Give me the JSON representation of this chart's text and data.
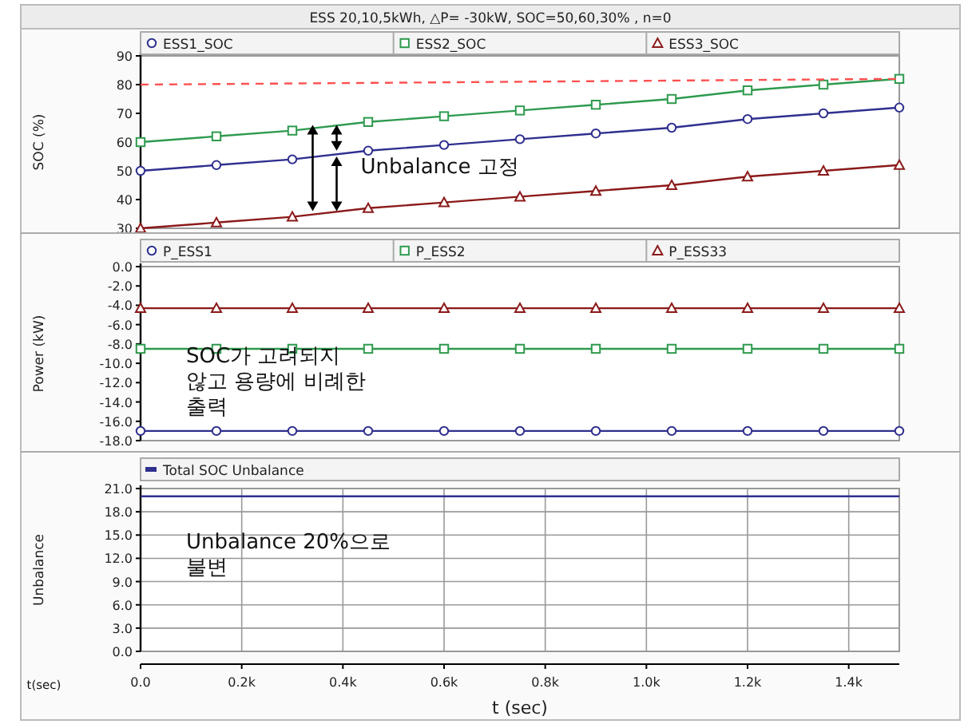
{
  "chart_data": [
    {
      "type": "line",
      "title": "ESS 20,10,5kWh, △P= -30kW, SOC=50,60,30% , n=0",
      "ylabel": "SOC (%)",
      "legend": "top",
      "grid": false,
      "tick_labels": "y",
      "xlim": [
        0,
        1500
      ],
      "ylim": [
        30,
        90
      ],
      "yticks": [
        30,
        40,
        50,
        60,
        70,
        80,
        90
      ],
      "annotations": [
        "Unbalance 고정"
      ],
      "series": [
        {
          "name": "ESS1_SOC",
          "color": "#2f2f8f",
          "marker": "circle",
          "x": [
            0,
            150,
            300,
            450,
            600,
            750,
            900,
            1050,
            1200,
            1350,
            1500
          ],
          "values": [
            50,
            52,
            54,
            57,
            59,
            61,
            63,
            65,
            68,
            70,
            72
          ]
        },
        {
          "name": "ESS2_SOC",
          "color": "#2e9a4e",
          "marker": "square",
          "x": [
            0,
            150,
            300,
            450,
            600,
            750,
            900,
            1050,
            1200,
            1350,
            1500
          ],
          "values": [
            60,
            62,
            64,
            67,
            69,
            71,
            73,
            75,
            78,
            80,
            82
          ]
        },
        {
          "name": "ESS3_SOC",
          "color": "#8b1a1a",
          "marker": "triangle",
          "x": [
            0,
            150,
            300,
            450,
            600,
            750,
            900,
            1050,
            1200,
            1350,
            1500
          ],
          "values": [
            30,
            32,
            34,
            37,
            39,
            41,
            43,
            45,
            48,
            50,
            52
          ]
        },
        {
          "color": "#ff5050",
          "marker": "none",
          "line_style": "dashed",
          "x": [
            0,
            1500
          ],
          "values": [
            80,
            82
          ]
        }
      ]
    },
    {
      "type": "line",
      "ylabel": "Power (kW)",
      "legend": "top",
      "grid": false,
      "tick_labels": "y",
      "xlim": [
        0,
        1500
      ],
      "ylim": [
        -18,
        0
      ],
      "yticks": [
        {
          "value": 0,
          "label": "0.0"
        },
        {
          "value": -2,
          "label": "-2.0"
        },
        {
          "value": -4,
          "label": "-4.0"
        },
        {
          "value": -6,
          "label": "-6.0"
        },
        {
          "value": -8,
          "label": "-8.0"
        },
        {
          "value": -10,
          "label": "-10.0"
        },
        {
          "value": -12,
          "label": "-12.0"
        },
        {
          "value": -14,
          "label": "-14.0"
        },
        {
          "value": -16,
          "label": "-16.0"
        },
        {
          "value": -18,
          "label": "-18.0"
        }
      ],
      "annotations": [
        "SOC가 고려되지\n않고 용량에 비례한\n출력"
      ],
      "series": [
        {
          "name": "P_ESS1",
          "color": "#2f2f8f",
          "marker": "circle",
          "x": [
            0,
            150,
            300,
            450,
            600,
            750,
            900,
            1050,
            1200,
            1350,
            1500
          ],
          "values": [
            -17,
            -17,
            -17,
            -17,
            -17,
            -17,
            -17,
            -17,
            -17,
            -17,
            -17
          ]
        },
        {
          "name": "P_ESS2",
          "color": "#2e9a4e",
          "marker": "square",
          "x": [
            0,
            150,
            300,
            450,
            600,
            750,
            900,
            1050,
            1200,
            1350,
            1500
          ],
          "values": [
            -8.5,
            -8.5,
            -8.5,
            -8.5,
            -8.5,
            -8.5,
            -8.5,
            -8.5,
            -8.5,
            -8.5,
            -8.5
          ]
        },
        {
          "name": "P_ESS33",
          "color": "#8b1a1a",
          "marker": "triangle",
          "x": [
            0,
            150,
            300,
            450,
            600,
            750,
            900,
            1050,
            1200,
            1350,
            1500
          ],
          "values": [
            -4.3,
            -4.3,
            -4.3,
            -4.3,
            -4.3,
            -4.3,
            -4.3,
            -4.3,
            -4.3,
            -4.3,
            -4.3
          ]
        }
      ]
    },
    {
      "type": "line",
      "xlabel": "t (sec)",
      "ylabel": "Unbalance",
      "legend": "top",
      "grid": true,
      "xlim": [
        0,
        1500
      ],
      "ylim": [
        0,
        21
      ],
      "xticks": [
        {
          "value": 0,
          "label": "0.0"
        },
        {
          "value": 200,
          "label": "0.2k"
        },
        {
          "value": 400,
          "label": "0.4k"
        },
        {
          "value": 600,
          "label": "0.6k"
        },
        {
          "value": 800,
          "label": "0.8k"
        },
        {
          "value": 1000,
          "label": "1.0k"
        },
        {
          "value": 1200,
          "label": "1.2k"
        },
        {
          "value": 1400,
          "label": "1.4k"
        }
      ],
      "yticks": [
        {
          "value": 0,
          "label": "0.0"
        },
        {
          "value": 3,
          "label": "3.0"
        },
        {
          "value": 6,
          "label": "6.0"
        },
        {
          "value": 9,
          "label": "9.0"
        },
        {
          "value": 12,
          "label": "12.0"
        },
        {
          "value": 15,
          "label": "15.0"
        },
        {
          "value": 18,
          "label": "18.0"
        },
        {
          "value": 21,
          "label": "21.0"
        }
      ],
      "annotations": [
        "Unbalance 20%으로\n불변",
        "t(sec)"
      ],
      "series": [
        {
          "name": "Total SOC Unbalance",
          "color": "#2f2f8f",
          "marker": "none",
          "x": [
            0,
            1500
          ],
          "values": [
            20,
            20
          ]
        }
      ]
    }
  ]
}
